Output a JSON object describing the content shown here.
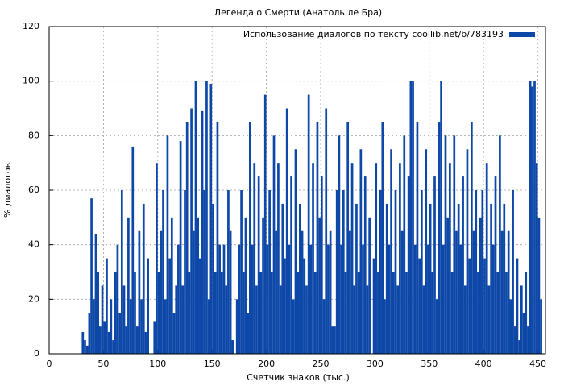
{
  "chart_data": {
    "type": "bar",
    "title": "Легенда о Смерти (Анатоль ле Бра)",
    "xlabel": "Счетчик знаков (тыс.)",
    "ylabel": "% диалогов",
    "x": [
      31,
      33,
      35,
      37,
      39,
      41,
      43,
      45,
      47,
      49,
      51,
      53,
      55,
      57,
      59,
      61,
      63,
      65,
      67,
      69,
      71,
      73,
      75,
      77,
      79,
      81,
      83,
      85,
      87,
      89,
      91,
      93,
      95,
      97,
      99,
      101,
      103,
      105,
      107,
      109,
      111,
      113,
      115,
      117,
      119,
      121,
      123,
      125,
      127,
      129,
      131,
      133,
      135,
      137,
      139,
      141,
      143,
      145,
      147,
      149,
      151,
      153,
      155,
      157,
      159,
      161,
      163,
      165,
      167,
      169,
      171,
      173,
      175,
      177,
      179,
      181,
      183,
      185,
      187,
      189,
      191,
      193,
      195,
      197,
      199,
      201,
      203,
      205,
      207,
      209,
      211,
      213,
      215,
      217,
      219,
      221,
      223,
      225,
      227,
      229,
      231,
      233,
      235,
      237,
      239,
      241,
      243,
      245,
      247,
      249,
      251,
      253,
      255,
      257,
      259,
      261,
      263,
      265,
      267,
      269,
      271,
      273,
      275,
      277,
      279,
      281,
      283,
      285,
      287,
      289,
      291,
      293,
      295,
      297,
      299,
      301,
      303,
      305,
      307,
      309,
      311,
      313,
      315,
      317,
      319,
      321,
      323,
      325,
      327,
      329,
      331,
      333,
      335,
      337,
      339,
      341,
      343,
      345,
      347,
      349,
      351,
      353,
      355,
      357,
      359,
      361,
      363,
      365,
      367,
      369,
      371,
      373,
      375,
      377,
      379,
      381,
      383,
      385,
      387,
      389,
      391,
      393,
      395,
      397,
      399,
      401,
      403,
      405,
      407,
      409,
      411,
      413,
      415,
      417,
      419,
      421,
      423,
      425,
      427,
      429,
      431,
      433,
      435,
      437,
      439,
      441,
      443,
      445,
      447,
      449,
      451,
      453
    ],
    "series": [
      {
        "name": "Использование диалогов по тексту coollib.net/b/783193",
        "color": "#0d47a8",
        "values": [
          8,
          5,
          3,
          15,
          57,
          20,
          44,
          30,
          10,
          25,
          12,
          35,
          8,
          20,
          5,
          30,
          40,
          15,
          60,
          25,
          10,
          50,
          20,
          76,
          30,
          10,
          45,
          20,
          55,
          8,
          35,
          0,
          0,
          12,
          70,
          30,
          45,
          60,
          20,
          80,
          35,
          50,
          15,
          25,
          40,
          78,
          25,
          60,
          85,
          30,
          90,
          45,
          100,
          50,
          35,
          89,
          60,
          100,
          20,
          99,
          55,
          30,
          85,
          40,
          30,
          40,
          25,
          60,
          45,
          5,
          0,
          20,
          40,
          60,
          30,
          50,
          15,
          85,
          40,
          70,
          25,
          65,
          30,
          50,
          95,
          40,
          60,
          30,
          80,
          45,
          70,
          25,
          55,
          35,
          90,
          40,
          65,
          20,
          75,
          30,
          55,
          45,
          35,
          25,
          95,
          40,
          70,
          30,
          85,
          50,
          65,
          20,
          90,
          40,
          45,
          10,
          10,
          60,
          80,
          40,
          60,
          30,
          85,
          45,
          70,
          25,
          55,
          30,
          75,
          40,
          65,
          25,
          50,
          0,
          35,
          70,
          30,
          60,
          85,
          20,
          55,
          40,
          75,
          30,
          60,
          25,
          70,
          45,
          80,
          30,
          65,
          100,
          100,
          40,
          85,
          35,
          60,
          25,
          75,
          40,
          55,
          30,
          65,
          20,
          85,
          100,
          40,
          80,
          50,
          70,
          30,
          80,
          45,
          55,
          40,
          65,
          25,
          75,
          35,
          85,
          45,
          60,
          30,
          50,
          60,
          35,
          70,
          25,
          55,
          40,
          65,
          30,
          80,
          45,
          55,
          30,
          45,
          20,
          60,
          10,
          35,
          5,
          25,
          15,
          30,
          10,
          100,
          98,
          100,
          70,
          50,
          20
        ]
      }
    ],
    "xlim": [
      0,
      457
    ],
    "ylim": [
      0,
      120
    ],
    "xticks": [
      0,
      50,
      100,
      150,
      200,
      250,
      300,
      350,
      400,
      450
    ],
    "yticks": [
      0,
      20,
      40,
      60,
      80,
      100,
      120
    ],
    "grid": true,
    "legend": "upper-right"
  }
}
